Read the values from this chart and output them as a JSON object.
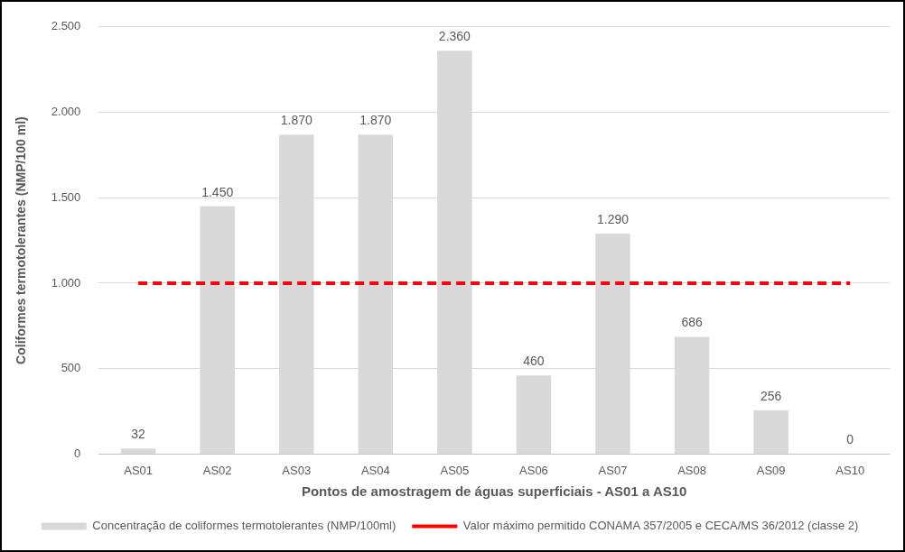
{
  "chart_data": {
    "type": "bar",
    "xlabel": "Pontos de amostragem de águas superficiais - AS01 a AS10",
    "ylabel": "Coliformes termotolerantes (NMP/100 ml)",
    "categories": [
      "AS01",
      "AS02",
      "AS03",
      "AS04",
      "AS05",
      "AS06",
      "AS07",
      "AS08",
      "AS09",
      "AS10"
    ],
    "series": [
      {
        "name": "Concentração de coliformes termotolerantes (NMP/100ml)",
        "color": "#d9d9d9",
        "values": [
          32,
          1450,
          1870,
          1870,
          2360,
          460,
          1290,
          686,
          256,
          0
        ],
        "value_labels": [
          "32",
          "1.450",
          "1.870",
          "1.870",
          "2.360",
          "460",
          "1.290",
          "686",
          "256",
          "0"
        ]
      },
      {
        "name": "Valor máximo permitido CONAMA 357/2005 e CECA/MS 36/2012 (classe 2)",
        "type": "line",
        "color": "#ff0000",
        "line_style": "dashed",
        "marker": "none",
        "values": [
          1000,
          1000,
          1000,
          1000,
          1000,
          1000,
          1000,
          1000,
          1000,
          1000
        ]
      }
    ],
    "ylim": [
      0,
      2500
    ],
    "yticks": [
      0,
      500,
      {
        "value": 1000,
        "label": "1.000"
      },
      {
        "value": 1500,
        "label": "1.500"
      },
      {
        "value": 2000,
        "label": "2.000"
      },
      {
        "value": 2500,
        "label": "2.500"
      }
    ],
    "grid": "y",
    "legend": "bottom"
  }
}
